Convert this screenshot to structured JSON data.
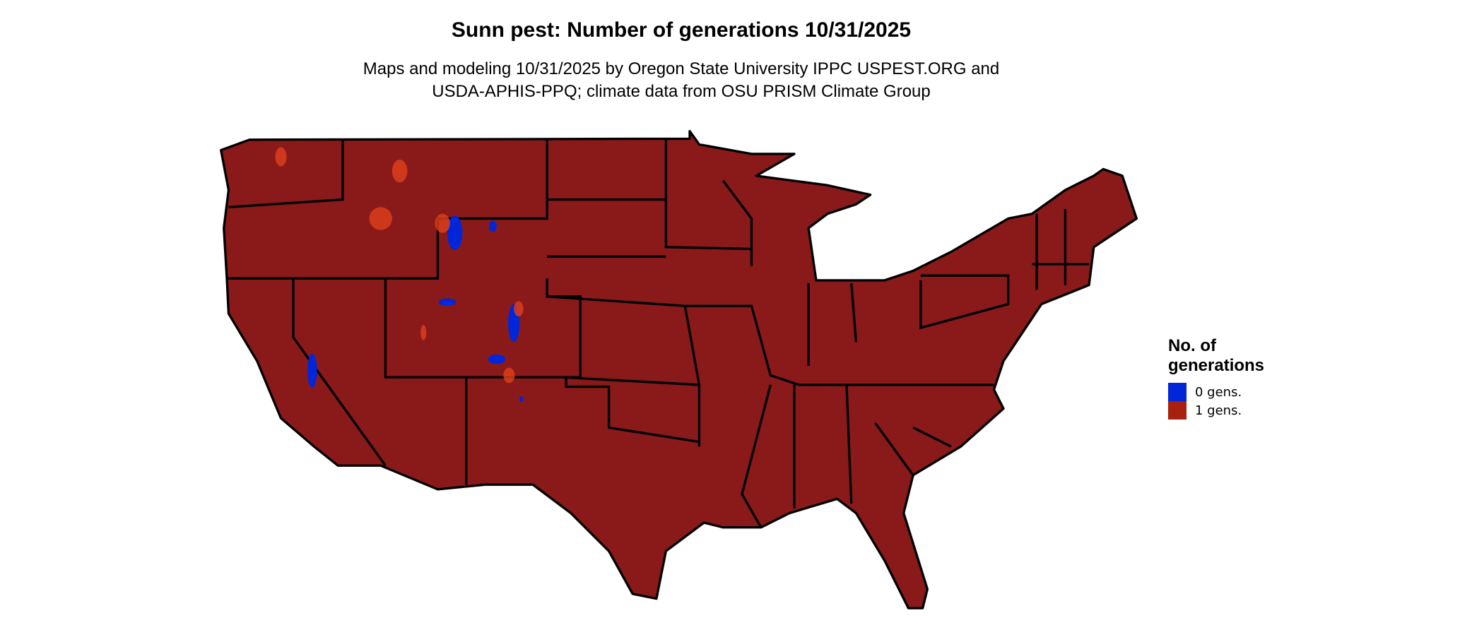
{
  "title": "Sunn pest: Number of generations 10/31/2025",
  "subtitle": [
    "Maps and modeling 10/31/2025 by Oregon State University IPPC USPEST.ORG and",
    "USDA-APHIS-PPQ; climate data from OSU PRISM Climate Group"
  ],
  "map": {
    "region": "Contiguous United States",
    "dominant_class": "1 gens.",
    "colors": {
      "state_border": "#000000",
      "highlands_orange": "#e0401a"
    }
  },
  "legend": {
    "title": "No. of generations",
    "items": [
      {
        "label": "0 gens.",
        "color": "#0026d9"
      },
      {
        "label": "1 gens.",
        "color": "#a8200e"
      }
    ]
  }
}
